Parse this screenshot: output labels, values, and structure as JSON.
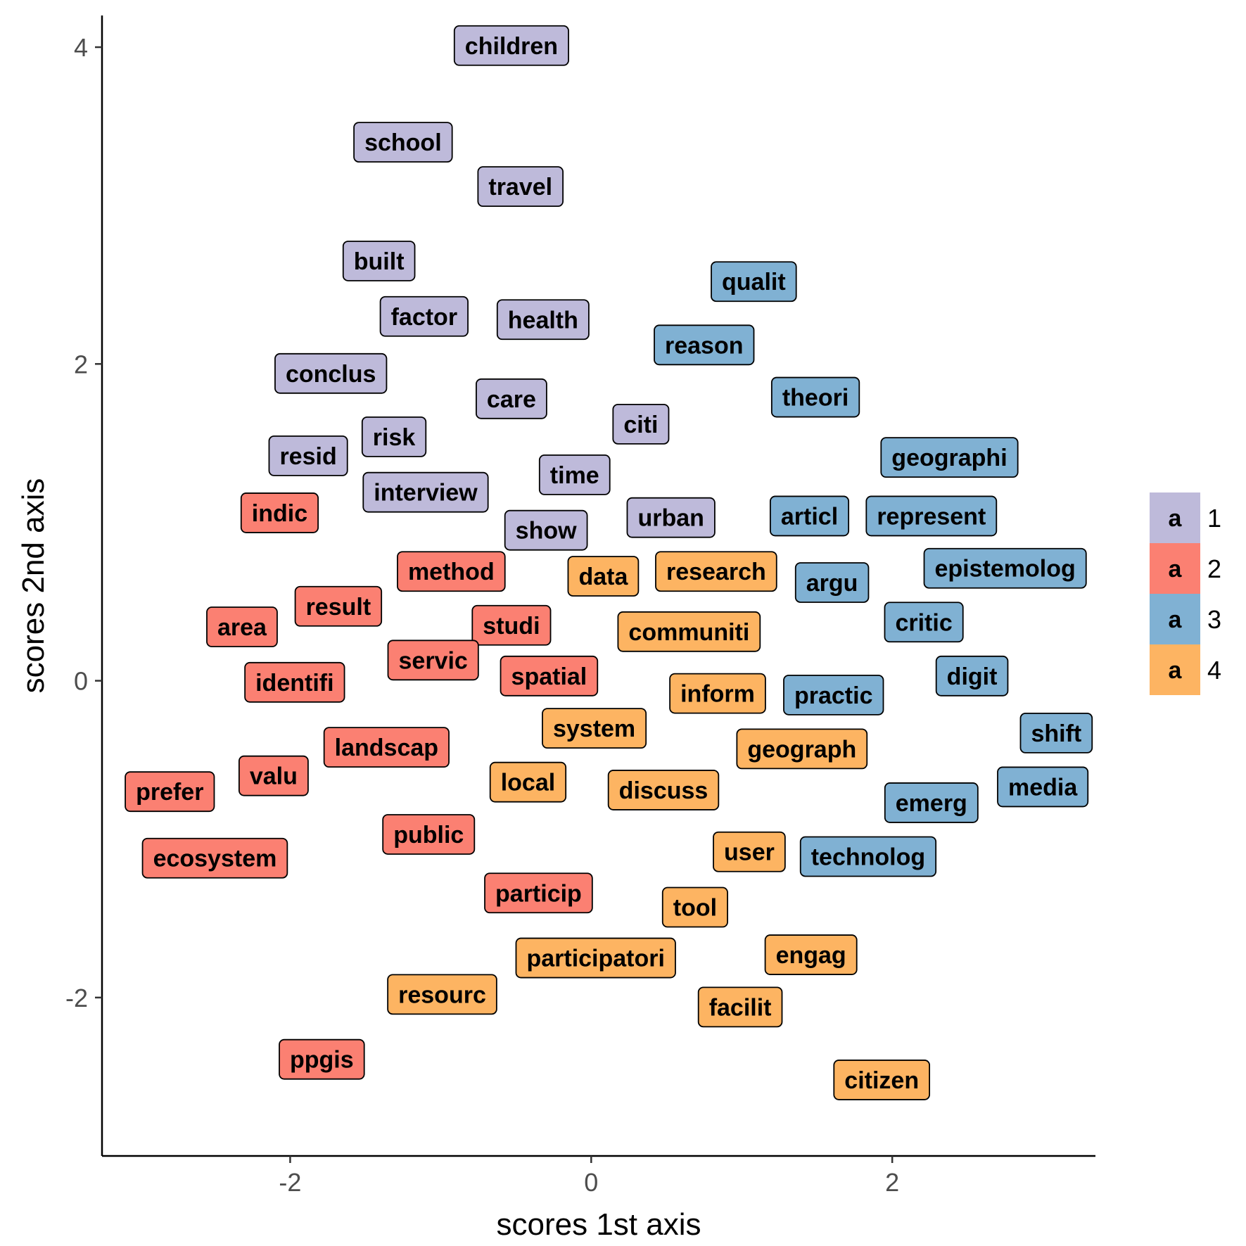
{
  "chart_data": {
    "type": "scatter",
    "xlabel": "scores 1st axis",
    "ylabel": "scores 2nd axis",
    "xlim": [
      -3.25,
      3.35
    ],
    "ylim": [
      -3.0,
      4.2
    ],
    "xticks": [
      -2,
      0,
      2
    ],
    "yticks": [
      -2,
      0,
      2,
      4
    ],
    "grid": false,
    "legend": {
      "position": "right",
      "key_text": "a",
      "entries": [
        {
          "name": "1",
          "color": "#BEBADA"
        },
        {
          "name": "2",
          "color": "#FB8072"
        },
        {
          "name": "3",
          "color": "#80B1D3"
        },
        {
          "name": "4",
          "color": "#FDB462"
        }
      ]
    },
    "points": [
      {
        "label": "children",
        "x": -0.53,
        "y": 4.01,
        "group": "1"
      },
      {
        "label": "school",
        "x": -1.25,
        "y": 3.4,
        "group": "1"
      },
      {
        "label": "travel",
        "x": -0.47,
        "y": 3.12,
        "group": "1"
      },
      {
        "label": "built",
        "x": -1.41,
        "y": 2.65,
        "group": "1"
      },
      {
        "label": "factor",
        "x": -1.11,
        "y": 2.3,
        "group": "1"
      },
      {
        "label": "health",
        "x": -0.32,
        "y": 2.28,
        "group": "1"
      },
      {
        "label": "conclus",
        "x": -1.73,
        "y": 1.94,
        "group": "1"
      },
      {
        "label": "care",
        "x": -0.53,
        "y": 1.78,
        "group": "1"
      },
      {
        "label": "citi",
        "x": 0.33,
        "y": 1.62,
        "group": "1"
      },
      {
        "label": "risk",
        "x": -1.31,
        "y": 1.54,
        "group": "1"
      },
      {
        "label": "resid",
        "x": -1.88,
        "y": 1.42,
        "group": "1"
      },
      {
        "label": "time",
        "x": -0.11,
        "y": 1.3,
        "group": "1"
      },
      {
        "label": "interview",
        "x": -1.1,
        "y": 1.19,
        "group": "1"
      },
      {
        "label": "urban",
        "x": 0.53,
        "y": 1.03,
        "group": "1"
      },
      {
        "label": "show",
        "x": -0.3,
        "y": 0.95,
        "group": "1"
      },
      {
        "label": "indic",
        "x": -2.07,
        "y": 1.06,
        "group": "2"
      },
      {
        "label": "method",
        "x": -0.93,
        "y": 0.69,
        "group": "2"
      },
      {
        "label": "result",
        "x": -1.68,
        "y": 0.47,
        "group": "2"
      },
      {
        "label": "area",
        "x": -2.32,
        "y": 0.34,
        "group": "2"
      },
      {
        "label": "studi",
        "x": -0.53,
        "y": 0.35,
        "group": "2"
      },
      {
        "label": "servic",
        "x": -1.05,
        "y": 0.13,
        "group": "2"
      },
      {
        "label": "spatial",
        "x": -0.28,
        "y": 0.03,
        "group": "2"
      },
      {
        "label": "identifi",
        "x": -1.97,
        "y": -0.01,
        "group": "2"
      },
      {
        "label": "landscap",
        "x": -1.36,
        "y": -0.42,
        "group": "2"
      },
      {
        "label": "valu",
        "x": -2.11,
        "y": -0.6,
        "group": "2"
      },
      {
        "label": "prefer",
        "x": -2.8,
        "y": -0.7,
        "group": "2"
      },
      {
        "label": "public",
        "x": -1.08,
        "y": -0.97,
        "group": "2"
      },
      {
        "label": "ecosystem",
        "x": -2.5,
        "y": -1.12,
        "group": "2"
      },
      {
        "label": "particip",
        "x": -0.35,
        "y": -1.34,
        "group": "2"
      },
      {
        "label": "ppgis",
        "x": -1.79,
        "y": -2.39,
        "group": "2"
      },
      {
        "label": "qualit",
        "x": 1.08,
        "y": 2.52,
        "group": "3"
      },
      {
        "label": "reason",
        "x": 0.75,
        "y": 2.12,
        "group": "3"
      },
      {
        "label": "theori",
        "x": 1.49,
        "y": 1.79,
        "group": "3"
      },
      {
        "label": "geographi",
        "x": 2.38,
        "y": 1.41,
        "group": "3"
      },
      {
        "label": "articl",
        "x": 1.45,
        "y": 1.04,
        "group": "3"
      },
      {
        "label": "represent",
        "x": 2.26,
        "y": 1.04,
        "group": "3"
      },
      {
        "label": "epistemolog",
        "x": 2.75,
        "y": 0.71,
        "group": "3"
      },
      {
        "label": "argu",
        "x": 1.6,
        "y": 0.62,
        "group": "3"
      },
      {
        "label": "critic",
        "x": 2.21,
        "y": 0.37,
        "group": "3"
      },
      {
        "label": "digit",
        "x": 2.53,
        "y": 0.03,
        "group": "3"
      },
      {
        "label": "practic",
        "x": 1.61,
        "y": -0.09,
        "group": "3"
      },
      {
        "label": "shift",
        "x": 3.09,
        "y": -0.33,
        "group": "3"
      },
      {
        "label": "media",
        "x": 3.0,
        "y": -0.67,
        "group": "3"
      },
      {
        "label": "emerg",
        "x": 2.26,
        "y": -0.77,
        "group": "3"
      },
      {
        "label": "technolog",
        "x": 1.84,
        "y": -1.11,
        "group": "3"
      },
      {
        "label": "data",
        "x": 0.08,
        "y": 0.66,
        "group": "4"
      },
      {
        "label": "research",
        "x": 0.83,
        "y": 0.69,
        "group": "4"
      },
      {
        "label": "communiti",
        "x": 0.65,
        "y": 0.31,
        "group": "4"
      },
      {
        "label": "inform",
        "x": 0.84,
        "y": -0.08,
        "group": "4"
      },
      {
        "label": "system",
        "x": 0.02,
        "y": -0.3,
        "group": "4"
      },
      {
        "label": "geograph",
        "x": 1.4,
        "y": -0.43,
        "group": "4"
      },
      {
        "label": "local",
        "x": -0.42,
        "y": -0.64,
        "group": "4"
      },
      {
        "label": "discuss",
        "x": 0.48,
        "y": -0.69,
        "group": "4"
      },
      {
        "label": "user",
        "x": 1.05,
        "y": -1.08,
        "group": "4"
      },
      {
        "label": "tool",
        "x": 0.69,
        "y": -1.43,
        "group": "4"
      },
      {
        "label": "participatori",
        "x": 0.03,
        "y": -1.75,
        "group": "4"
      },
      {
        "label": "engag",
        "x": 1.46,
        "y": -1.73,
        "group": "4"
      },
      {
        "label": "resourc",
        "x": -0.99,
        "y": -1.98,
        "group": "4"
      },
      {
        "label": "facilit",
        "x": 0.99,
        "y": -2.06,
        "group": "4"
      },
      {
        "label": "citizen",
        "x": 1.93,
        "y": -2.52,
        "group": "4"
      }
    ]
  }
}
